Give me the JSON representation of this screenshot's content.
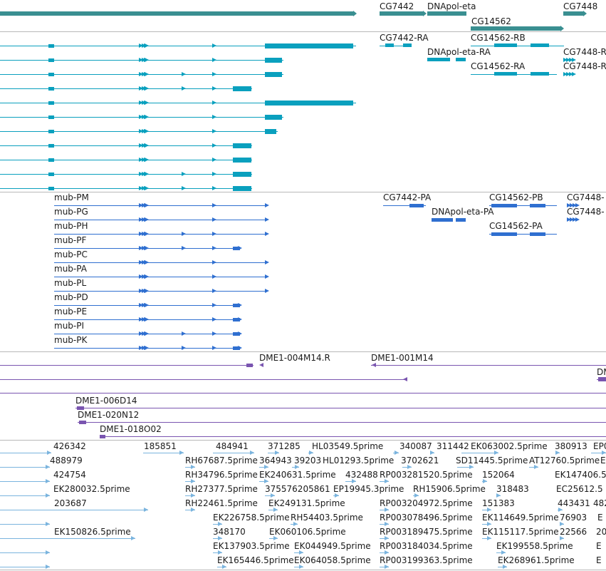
{
  "colors": {
    "gene": "#3a8f91",
    "transcript": "#0aa0be",
    "mrna": "#2f6fd0",
    "clone": "#7a55b0",
    "est": "#7ab4de",
    "divider": "#b8b8b8"
  },
  "tracks": {
    "genes": {
      "items": [
        {
          "label": "CG7442"
        },
        {
          "label": "DNApol-eta"
        },
        {
          "label": "CG14562"
        },
        {
          "label": "CG7448"
        }
      ]
    },
    "transcripts": {
      "labels": [
        {
          "label": "CG7442-RA"
        },
        {
          "label": "CG14562-RB"
        },
        {
          "label": "DNApol-eta-RA"
        },
        {
          "label": "CG7448-R"
        },
        {
          "label": "CG14562-RA"
        },
        {
          "label": "CG7448-R"
        }
      ]
    },
    "mrnas": {
      "mub_labels": [
        "mub-PM",
        "mub-PG",
        "mub-PH",
        "mub-PF",
        "mub-PC",
        "mub-PA",
        "mub-PL",
        "mub-PD",
        "mub-PE",
        "mub-PI",
        "mub-PK"
      ],
      "right_labels": [
        {
          "label": "CG7442-PA"
        },
        {
          "label": "CG14562-PB"
        },
        {
          "label": "CG7448-"
        },
        {
          "label": "DNApol-eta-PA"
        },
        {
          "label": "CG7448-"
        },
        {
          "label": "CG14562-PA"
        }
      ]
    },
    "clones": {
      "labels": [
        {
          "label": "DME1-004M14.R"
        },
        {
          "label": "DME1-001M14"
        },
        {
          "label": "DM"
        },
        {
          "label": "DME1-006D14"
        },
        {
          "label": "DME1-020N12"
        },
        {
          "label": "DME1-018O02"
        }
      ]
    },
    "ests": {
      "labels": [
        {
          "label": "426342"
        },
        {
          "label": "185851"
        },
        {
          "label": "484941"
        },
        {
          "label": "371285"
        },
        {
          "label": "HL03549.5prime"
        },
        {
          "label": "340087"
        },
        {
          "label": "311442"
        },
        {
          "label": "EK063002.5prime"
        },
        {
          "label": "380913"
        },
        {
          "label": "EP0"
        },
        {
          "label": "488979"
        },
        {
          "label": "RH67687.5prime"
        },
        {
          "label": "364943"
        },
        {
          "label": "39203"
        },
        {
          "label": "HL01293.5prime"
        },
        {
          "label": "3702621"
        },
        {
          "label": "SD11445.5prime"
        },
        {
          "label": "AT12760.5prime"
        },
        {
          "label": "E"
        },
        {
          "label": "424754"
        },
        {
          "label": "RH34796.5prime"
        },
        {
          "label": "EK240631.5prime"
        },
        {
          "label": "432488"
        },
        {
          "label": "RP003281520.5prime"
        },
        {
          "label": "152064"
        },
        {
          "label": "EK147406.5"
        },
        {
          "label": "EK280032.5prime"
        },
        {
          "label": "RH27377.5prime"
        },
        {
          "label": "375576205861"
        },
        {
          "label": "EP19945.3prime"
        },
        {
          "label": "RH15906.5prime"
        },
        {
          "label": "318483"
        },
        {
          "label": "EC25612.5"
        },
        {
          "label": "203687"
        },
        {
          "label": "RH22461.5prime"
        },
        {
          "label": "EK249131.5prime"
        },
        {
          "label": "RP003204972.5prime"
        },
        {
          "label": "151383"
        },
        {
          "label": "443431"
        },
        {
          "label": "482"
        },
        {
          "label": "EK226758.5prime"
        },
        {
          "label": "RH54403.5prime"
        },
        {
          "label": "RP003078496.5prime"
        },
        {
          "label": "EK114649.5prime"
        },
        {
          "label": "76903"
        },
        {
          "label": "E"
        },
        {
          "label": "EK150826.5prime"
        },
        {
          "label": "348170"
        },
        {
          "label": "EK060106.5prime"
        },
        {
          "label": "RP003189475.5prime"
        },
        {
          "label": "EK115117.5prime"
        },
        {
          "label": "22566"
        },
        {
          "label": "20"
        },
        {
          "label": "EK137903.5prime"
        },
        {
          "label": "EK044949.5prime"
        },
        {
          "label": "RP003184034.5prime"
        },
        {
          "label": "EK199558.5prime"
        },
        {
          "label": "E"
        },
        {
          "label": "EK165446.5prime"
        },
        {
          "label": "EK064058.5prime"
        },
        {
          "label": "RP003199363.5prime"
        },
        {
          "label": "EK268961.5prime"
        },
        {
          "label": "E"
        }
      ]
    }
  }
}
